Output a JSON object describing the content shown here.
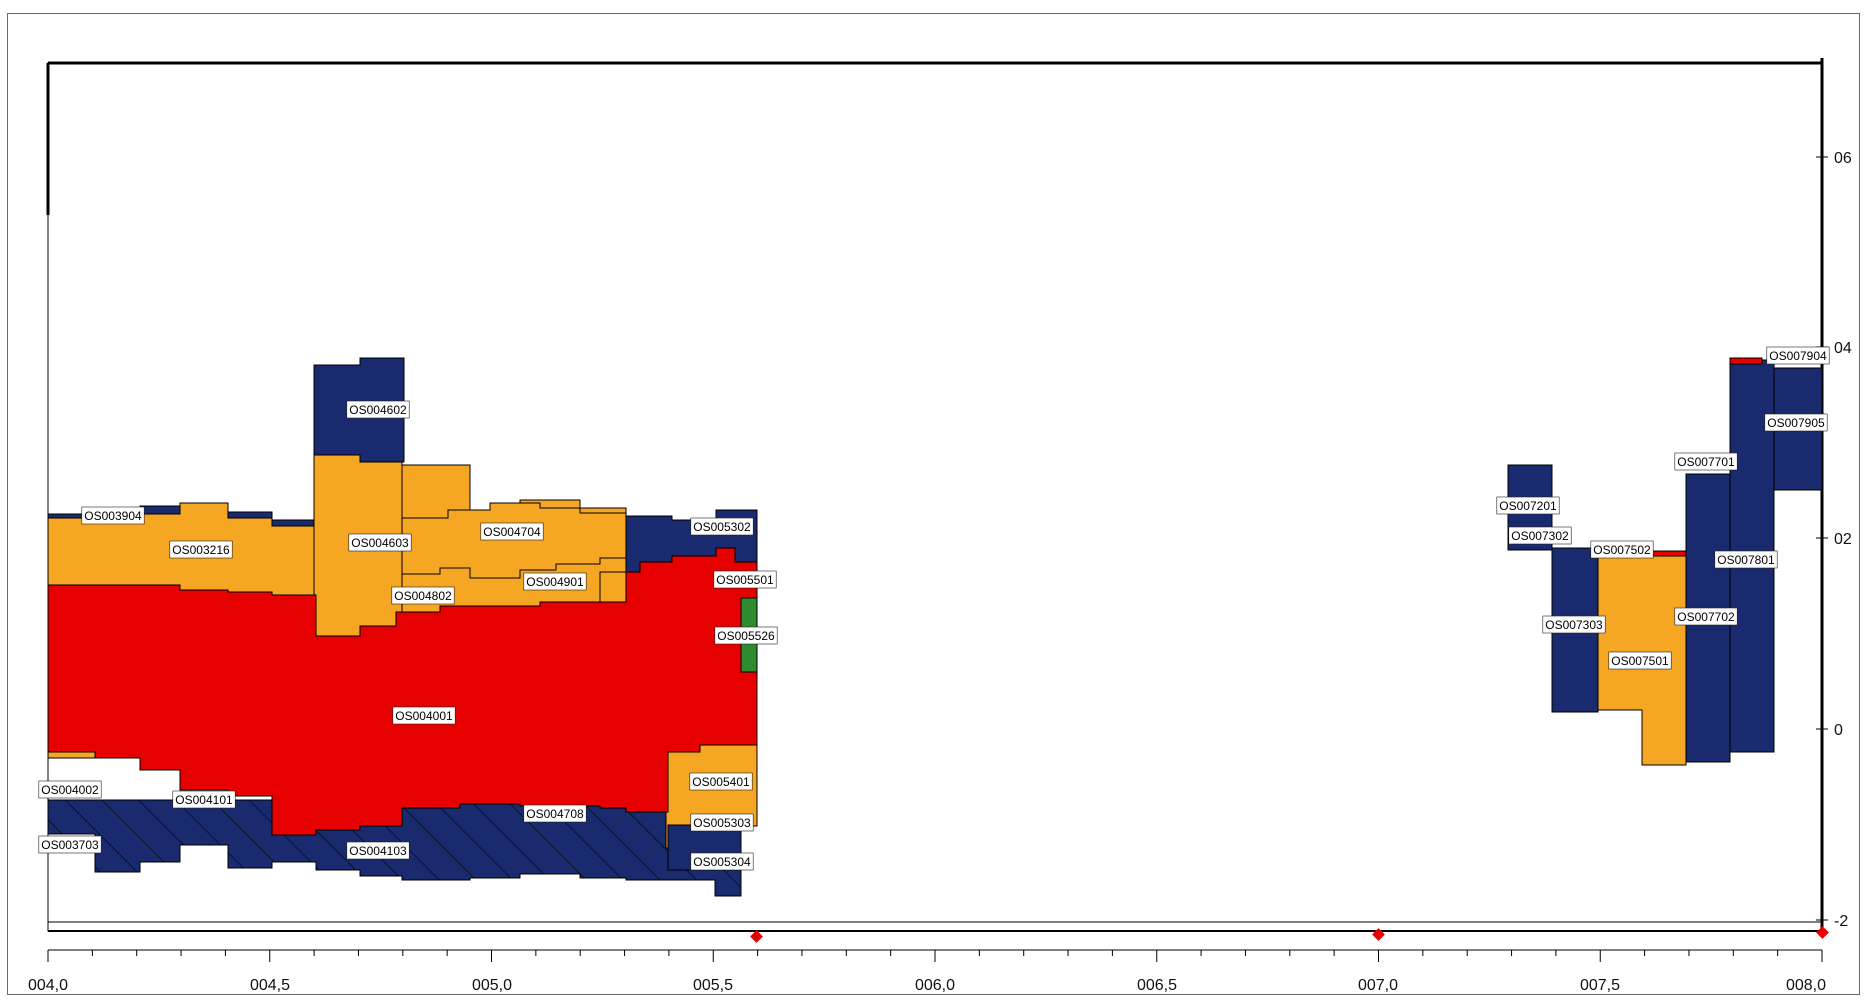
{
  "colors": {
    "navy": "#1a2a6e",
    "orange": "#f5a623",
    "red": "#e60000",
    "green": "#2e8b2e",
    "marker": "#e60000",
    "axis": "#000000"
  },
  "axes": {
    "x_ticks": [
      "004,0",
      "004,5",
      "005,0",
      "005,5",
      "006,0",
      "006,5",
      "007,0",
      "007,5",
      "008,0"
    ],
    "y_ticks": [
      "06",
      "04",
      "02",
      "0",
      "-2"
    ]
  },
  "unit_labels": [
    {
      "id": "OS003904"
    },
    {
      "id": "OS003216"
    },
    {
      "id": "OS004602"
    },
    {
      "id": "OS004603"
    },
    {
      "id": "OS004704"
    },
    {
      "id": "OS004802"
    },
    {
      "id": "OS004901"
    },
    {
      "id": "OS005302"
    },
    {
      "id": "OS005501"
    },
    {
      "id": "OS005526"
    },
    {
      "id": "OS004001"
    },
    {
      "id": "OS004002"
    },
    {
      "id": "OS004101"
    },
    {
      "id": "OS004708"
    },
    {
      "id": "OS005401"
    },
    {
      "id": "OS005303"
    },
    {
      "id": "OS003703"
    },
    {
      "id": "OS004103"
    },
    {
      "id": "OS005304"
    },
    {
      "id": "OS007904"
    },
    {
      "id": "OS007905"
    },
    {
      "id": "OS007701"
    },
    {
      "id": "OS007201"
    },
    {
      "id": "OS007302"
    },
    {
      "id": "OS007502"
    },
    {
      "id": "OS007801"
    },
    {
      "id": "OS007303"
    },
    {
      "id": "OS007702"
    },
    {
      "id": "OS007501"
    }
  ]
}
